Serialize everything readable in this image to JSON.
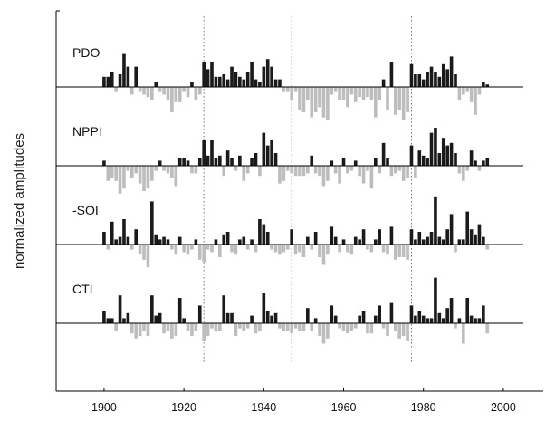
{
  "chart_data": {
    "type": "bar",
    "title": "",
    "xlabel": "",
    "ylabel": "normalized amplitudes",
    "xlim": [
      1888,
      2010
    ],
    "x_ticks": [
      "1900",
      "1920",
      "1940",
      "1960",
      "1980",
      "2000"
    ],
    "reference_lines": [
      1925,
      1947,
      1977
    ],
    "colors": {
      "positive": "#1a1a1a",
      "negative": "#bdbdbd",
      "reference": "#777777"
    },
    "years": [
      1900,
      1901,
      1902,
      1903,
      1904,
      1905,
      1906,
      1907,
      1908,
      1909,
      1910,
      1911,
      1912,
      1913,
      1914,
      1915,
      1916,
      1917,
      1918,
      1919,
      1920,
      1921,
      1922,
      1923,
      1924,
      1925,
      1926,
      1927,
      1928,
      1929,
      1930,
      1931,
      1932,
      1933,
      1934,
      1935,
      1936,
      1937,
      1938,
      1939,
      1940,
      1941,
      1942,
      1943,
      1944,
      1945,
      1946,
      1947,
      1948,
      1949,
      1950,
      1951,
      1952,
      1953,
      1954,
      1955,
      1956,
      1957,
      1958,
      1959,
      1960,
      1961,
      1962,
      1963,
      1964,
      1965,
      1966,
      1967,
      1968,
      1969,
      1970,
      1971,
      1972,
      1973,
      1974,
      1975,
      1976,
      1977,
      1978,
      1979,
      1980,
      1981,
      1982,
      1983,
      1984,
      1985,
      1986,
      1987,
      1988,
      1989,
      1990,
      1991,
      1992,
      1993,
      1994,
      1995,
      1996
    ],
    "series": [
      {
        "name": "PDO",
        "values": [
          0.4,
          0.4,
          0.6,
          -0.2,
          0.5,
          1.3,
          0.8,
          -0.3,
          0.8,
          -0.2,
          -0.3,
          -0.4,
          -0.5,
          0.2,
          -0.2,
          -0.3,
          -0.5,
          -1.0,
          -0.6,
          -0.6,
          -0.2,
          -0.4,
          0.2,
          -0.5,
          -0.3,
          1.0,
          0.7,
          1.0,
          0.4,
          0.4,
          0.5,
          0.3,
          0.8,
          0.6,
          0.4,
          0.3,
          0.6,
          1.0,
          0.3,
          0.2,
          0.8,
          1.1,
          0.8,
          0.3,
          0.3,
          -0.2,
          -0.2,
          -0.5,
          -0.2,
          -0.9,
          -1.0,
          -0.5,
          -1.2,
          -1.0,
          -0.8,
          -1.2,
          -1.3,
          -0.3,
          -0.2,
          -0.5,
          -0.5,
          -0.8,
          -0.3,
          -0.6,
          -0.4,
          -0.5,
          -0.4,
          -0.5,
          -1.2,
          -0.5,
          0.3,
          -0.9,
          1.0,
          -1.1,
          -0.9,
          -1.3,
          -1.0,
          0.9,
          0.5,
          0.5,
          0.3,
          0.6,
          0.8,
          0.6,
          0.4,
          0.9,
          0.7,
          1.2,
          0.5,
          -0.5,
          -0.3,
          -0.2,
          -0.6,
          -1.1,
          -0.3,
          0.2,
          0.1
        ]
      },
      {
        "name": "NPPI",
        "values": [
          0.2,
          -0.6,
          -0.5,
          -0.6,
          -1.1,
          -0.9,
          -0.2,
          -0.5,
          -0.3,
          -0.7,
          -1.0,
          -0.9,
          -0.6,
          -0.2,
          0.2,
          -0.2,
          -0.3,
          -0.5,
          -0.8,
          0.3,
          0.3,
          0.2,
          -0.3,
          -0.3,
          0.3,
          1.0,
          0.4,
          1.0,
          0.3,
          0.4,
          -0.4,
          0.6,
          0.3,
          -0.2,
          0.4,
          -0.6,
          -0.3,
          0.3,
          0.5,
          -0.4,
          1.3,
          0.8,
          1.0,
          0.5,
          -0.7,
          -0.6,
          -0.2,
          -0.3,
          -0.4,
          -0.4,
          -0.4,
          -0.3,
          0.4,
          -0.3,
          -0.4,
          -0.8,
          -0.6,
          0.2,
          -0.3,
          -0.7,
          0.3,
          -0.3,
          -0.2,
          0.2,
          -0.4,
          -0.7,
          -0.2,
          -0.9,
          0.3,
          -0.3,
          0.9,
          0.3,
          -0.4,
          -0.3,
          -0.2,
          -0.6,
          -0.5,
          0.8,
          -0.5,
          0.6,
          0.4,
          0.3,
          1.3,
          1.5,
          0.5,
          1.1,
          0.8,
          0.9,
          0.5,
          -0.3,
          -0.6,
          -0.2,
          0.6,
          0.2,
          -0.2,
          0.2,
          0.3
        ]
      },
      {
        "name": "-SOI",
        "values": [
          0.5,
          -0.2,
          0.9,
          0.2,
          0.3,
          1.0,
          0.3,
          -0.2,
          0.6,
          -0.4,
          -0.6,
          -0.9,
          1.7,
          0.4,
          0.2,
          0.3,
          0.2,
          -0.2,
          -0.4,
          0.3,
          -0.3,
          -0.4,
          -0.2,
          0.2,
          -0.6,
          -0.7,
          -0.2,
          -0.3,
          0.2,
          -0.5,
          0.4,
          0.5,
          -0.3,
          -0.4,
          0.2,
          0.3,
          -0.2,
          0.2,
          -0.3,
          1.0,
          0.8,
          0.5,
          -0.2,
          -0.3,
          -0.4,
          -0.3,
          -0.2,
          0.6,
          -0.4,
          -0.3,
          -0.5,
          0.3,
          -0.2,
          0.5,
          -0.5,
          -0.8,
          -0.4,
          0.7,
          0.3,
          -0.3,
          0.2,
          -0.3,
          -0.4,
          0.3,
          0.2,
          0.6,
          -0.2,
          -0.3,
          0.2,
          0.6,
          -0.3,
          -0.4,
          0.7,
          -0.6,
          -0.5,
          -0.5,
          -0.6,
          0.6,
          0.2,
          0.5,
          0.2,
          0.3,
          0.5,
          1.9,
          0.3,
          0.2,
          0.6,
          1.2,
          -0.3,
          0.2,
          0.2,
          1.3,
          0.6,
          0.4,
          0.8,
          0.3,
          -0.2
        ]
      },
      {
        "name": "CTI",
        "values": [
          0.5,
          0.2,
          0.2,
          -0.3,
          1.1,
          0.2,
          0.4,
          -0.4,
          -0.6,
          -0.5,
          -0.3,
          -0.5,
          1.1,
          0.3,
          0.4,
          -0.4,
          -0.3,
          -0.6,
          -0.5,
          1.0,
          0.2,
          -0.3,
          -0.5,
          -0.3,
          0.7,
          -0.7,
          -0.5,
          -0.2,
          -0.3,
          -0.3,
          1.1,
          0.4,
          0.4,
          -0.5,
          -0.2,
          -0.3,
          -0.2,
          0.3,
          -0.4,
          -0.3,
          1.2,
          0.5,
          0.3,
          0.4,
          -0.2,
          -0.3,
          -0.3,
          -0.4,
          -0.2,
          -0.3,
          -0.3,
          0.6,
          -0.3,
          0.2,
          -0.5,
          -0.8,
          -0.6,
          0.7,
          0.3,
          -0.2,
          -0.3,
          -0.4,
          -0.3,
          -0.2,
          0.3,
          0.5,
          -0.4,
          -0.4,
          0.3,
          0.7,
          -0.2,
          -0.5,
          0.8,
          -0.3,
          -0.6,
          -0.5,
          -0.7,
          0.7,
          0.3,
          0.5,
          0.3,
          0.2,
          0.2,
          1.8,
          0.4,
          0.2,
          0.6,
          1.0,
          -0.2,
          0.2,
          -0.8,
          1.0,
          0.3,
          0.2,
          0.2,
          0.7,
          -0.4
        ]
      }
    ]
  }
}
